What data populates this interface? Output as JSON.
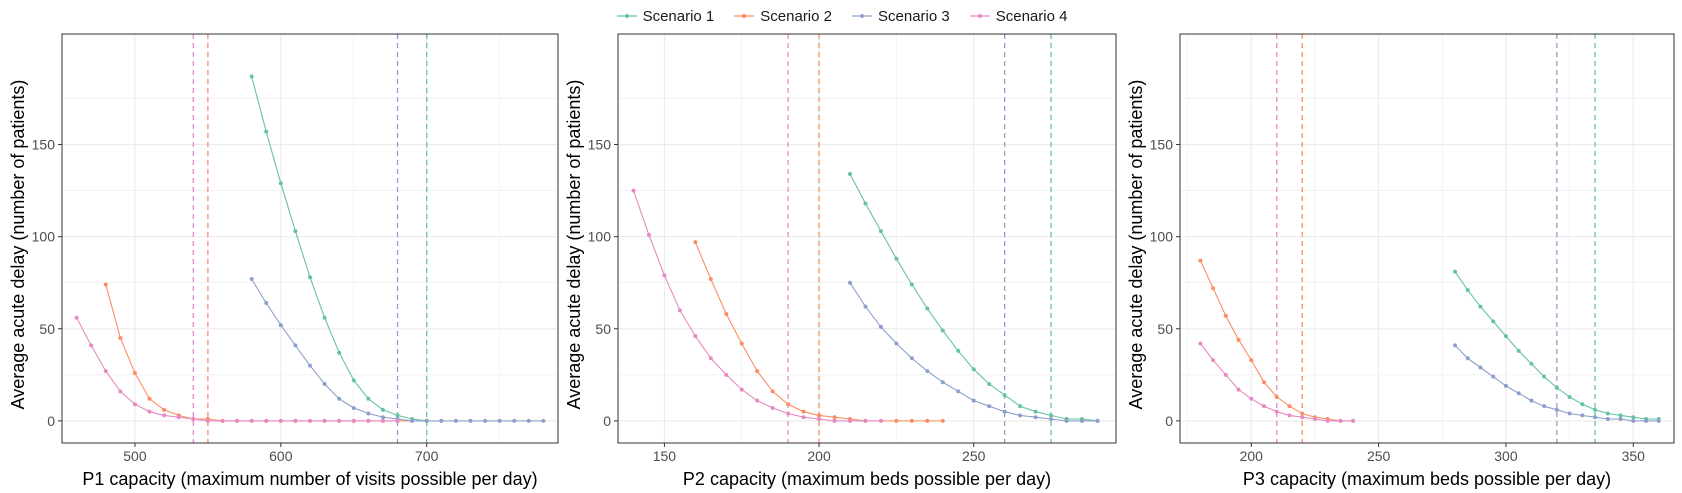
{
  "colors": {
    "s1": "#66c2a5",
    "s2": "#fc8d62",
    "s3": "#8da0cb",
    "s4": "#e78ac3",
    "grid": "#ebebeb",
    "panel_border": "#333333"
  },
  "legend": {
    "placement": "top",
    "entries": [
      "Scenario 1",
      "Scenario 2",
      "Scenario 3",
      "Scenario 4"
    ]
  },
  "chart_data": [
    {
      "type": "line",
      "xlabel": "P1 capacity (maximum number of visits possible per day)",
      "ylabel": "Average acute delay (number of patients)",
      "xlim": [
        450,
        790
      ],
      "ylim": [
        -12,
        210
      ],
      "xticks": [
        500,
        600,
        700
      ],
      "yticks": [
        0,
        50,
        100,
        150
      ],
      "grid": true,
      "vlines": [
        {
          "x": 540,
          "series": 3
        },
        {
          "x": 550,
          "series": 1
        },
        {
          "x": 680,
          "series": 2
        },
        {
          "x": 700,
          "series": 0
        }
      ],
      "series": [
        {
          "name": "Scenario 1",
          "x": [
            580,
            590,
            600,
            610,
            620,
            630,
            640,
            650,
            660,
            670,
            680,
            690,
            700
          ],
          "y": [
            187,
            157,
            129,
            103,
            78,
            56,
            37,
            22,
            12,
            6,
            3,
            1,
            0
          ]
        },
        {
          "name": "Scenario 2",
          "x": [
            480,
            490,
            500,
            510,
            520,
            530,
            540,
            550,
            560,
            570,
            580,
            590,
            600,
            610,
            620,
            630,
            640,
            650,
            660,
            670,
            680,
            690
          ],
          "y": [
            74,
            45,
            26,
            12,
            6,
            3,
            1,
            1,
            0,
            0,
            0,
            0,
            0,
            0,
            0,
            0,
            0,
            0,
            0,
            0,
            0,
            0
          ]
        },
        {
          "name": "Scenario 3",
          "x": [
            580,
            590,
            600,
            610,
            620,
            630,
            640,
            650,
            660,
            670,
            680,
            690,
            700,
            710,
            720,
            730,
            740,
            750,
            760,
            770,
            780
          ],
          "y": [
            77,
            64,
            52,
            41,
            30,
            20,
            12,
            7,
            4,
            2,
            1,
            0,
            0,
            0,
            0,
            0,
            0,
            0,
            0,
            0,
            0
          ]
        },
        {
          "name": "Scenario 4",
          "x": [
            460,
            470,
            480,
            490,
            500,
            510,
            520,
            530,
            540,
            550,
            560,
            570,
            580,
            590,
            600,
            610,
            620,
            630,
            640,
            650,
            660,
            670,
            680
          ],
          "y": [
            56,
            41,
            27,
            16,
            9,
            5,
            3,
            2,
            1,
            0,
            0,
            0,
            0,
            0,
            0,
            0,
            0,
            0,
            0,
            0,
            0,
            0,
            0
          ]
        }
      ]
    },
    {
      "type": "line",
      "xlabel": "P2 capacity (maximum beds possible per day)",
      "ylabel": "Average acute delay (number of patients)",
      "xlim": [
        135,
        296
      ],
      "ylim": [
        -12,
        210
      ],
      "xticks": [
        150,
        200,
        250
      ],
      "yticks": [
        0,
        50,
        100,
        150
      ],
      "grid": true,
      "vlines": [
        {
          "x": 190,
          "series": 3
        },
        {
          "x": 200,
          "series": 1
        },
        {
          "x": 260,
          "series": 2
        },
        {
          "x": 275,
          "series": 0
        }
      ],
      "series": [
        {
          "name": "Scenario 1",
          "x": [
            210,
            215,
            220,
            225,
            230,
            235,
            240,
            245,
            250,
            255,
            260,
            265,
            270,
            275,
            280,
            285,
            290
          ],
          "y": [
            134,
            118,
            103,
            88,
            74,
            61,
            49,
            38,
            28,
            20,
            14,
            8,
            5,
            3,
            1,
            1,
            0
          ]
        },
        {
          "name": "Scenario 2",
          "x": [
            160,
            165,
            170,
            175,
            180,
            185,
            190,
            195,
            200,
            205,
            210,
            215,
            220,
            225,
            230,
            235,
            240
          ],
          "y": [
            97,
            77,
            58,
            42,
            27,
            16,
            9,
            5,
            3,
            2,
            1,
            0,
            0,
            0,
            0,
            0,
            0
          ]
        },
        {
          "name": "Scenario 3",
          "x": [
            210,
            215,
            220,
            225,
            230,
            235,
            240,
            245,
            250,
            255,
            260,
            265,
            270,
            275,
            280,
            285,
            290
          ],
          "y": [
            75,
            62,
            51,
            42,
            34,
            27,
            21,
            16,
            11,
            8,
            5,
            3,
            2,
            1,
            0,
            0,
            0
          ]
        },
        {
          "name": "Scenario 4",
          "x": [
            140,
            145,
            150,
            155,
            160,
            165,
            170,
            175,
            180,
            185,
            190,
            195,
            200,
            205,
            210,
            215,
            220
          ],
          "y": [
            125,
            101,
            79,
            60,
            46,
            34,
            25,
            17,
            11,
            7,
            4,
            2,
            1,
            0,
            0,
            0,
            0
          ]
        }
      ]
    },
    {
      "type": "line",
      "xlabel": "P3 capacity (maximum beds possible per day)",
      "ylabel": "Average acute delay (number of patients)",
      "xlim": [
        172,
        366
      ],
      "ylim": [
        -12,
        210
      ],
      "xticks": [
        200,
        250,
        300,
        350
      ],
      "yticks": [
        0,
        50,
        100,
        150
      ],
      "grid": true,
      "vlines": [
        {
          "x": 210,
          "series": 3
        },
        {
          "x": 220,
          "series": 1
        },
        {
          "x": 320,
          "series": 2
        },
        {
          "x": 335,
          "series": 0
        }
      ],
      "series": [
        {
          "name": "Scenario 1",
          "x": [
            280,
            285,
            290,
            295,
            300,
            305,
            310,
            315,
            320,
            325,
            330,
            335,
            340,
            345,
            350,
            355,
            360
          ],
          "y": [
            81,
            71,
            62,
            54,
            46,
            38,
            31,
            24,
            18,
            13,
            9,
            6,
            4,
            3,
            2,
            1,
            1
          ]
        },
        {
          "name": "Scenario 2",
          "x": [
            180,
            185,
            190,
            195,
            200,
            205,
            210,
            215,
            220,
            225,
            230,
            235,
            240
          ],
          "y": [
            87,
            72,
            57,
            44,
            33,
            21,
            13,
            8,
            4,
            2,
            1,
            0,
            0
          ]
        },
        {
          "name": "Scenario 3",
          "x": [
            280,
            285,
            290,
            295,
            300,
            305,
            310,
            315,
            320,
            325,
            330,
            335,
            340,
            345,
            350,
            355,
            360
          ],
          "y": [
            41,
            34,
            29,
            24,
            19,
            15,
            11,
            8,
            6,
            4,
            3,
            2,
            1,
            1,
            0,
            0,
            0
          ]
        },
        {
          "name": "Scenario 4",
          "x": [
            180,
            185,
            190,
            195,
            200,
            205,
            210,
            215,
            220,
            225,
            230,
            235,
            240
          ],
          "y": [
            42,
            33,
            25,
            17,
            12,
            8,
            5,
            3,
            2,
            1,
            0,
            0,
            0
          ]
        }
      ]
    }
  ]
}
